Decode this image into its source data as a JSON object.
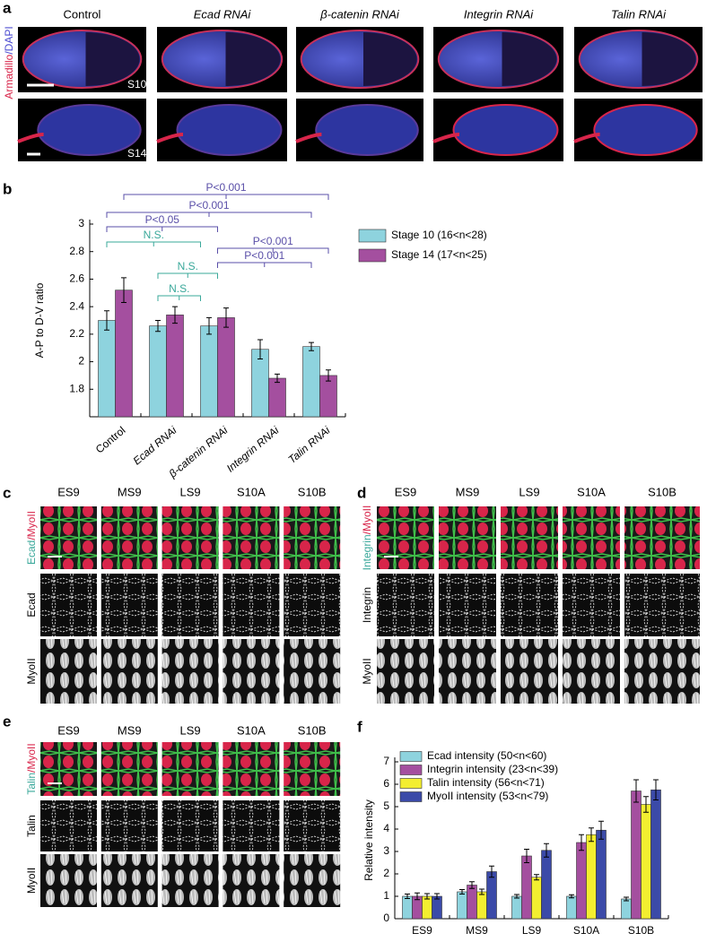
{
  "panel_labels": [
    "a",
    "b",
    "c",
    "d",
    "e",
    "f"
  ],
  "panel_a": {
    "conditions": [
      "Control",
      "Ecad RNAi",
      "β-catenin RNAi",
      "Integrin RNAi",
      "Talin RNAi"
    ],
    "side_label": [
      "Armadillo",
      "/DAPI"
    ],
    "stages": [
      "S10",
      "S14"
    ]
  },
  "panel_c": {
    "columns": [
      "ES9",
      "MS9",
      "LS9",
      "S10A",
      "S10B"
    ],
    "merge_label": [
      "Ecad",
      "/MyoII"
    ],
    "row_labels": [
      "Ecad",
      "MyoII"
    ]
  },
  "panel_d": {
    "columns": [
      "ES9",
      "MS9",
      "LS9",
      "S10A",
      "S10B"
    ],
    "merge_label": [
      "Integrin",
      "/MyoII"
    ],
    "row_labels": [
      "Integrin",
      "MyoII"
    ]
  },
  "panel_e": {
    "columns": [
      "ES9",
      "MS9",
      "LS9",
      "S10A",
      "S10B"
    ],
    "merge_label": [
      "Talin",
      "/MyoII"
    ],
    "row_labels": [
      "Talin",
      "MyoII"
    ]
  },
  "chart_data": [
    {
      "type": "bar",
      "ylabel": "A-P to D-V ratio",
      "categories": [
        "Control",
        "Ecad RNAi",
        "β-catenin RNAi",
        "Integrin RNAi",
        "Talin RNAi"
      ],
      "series": [
        {
          "name": "Stage 10  (16<n<28)",
          "color": "#8ed3de",
          "values": [
            2.3,
            2.26,
            2.26,
            2.09,
            2.11
          ],
          "errors": [
            0.07,
            0.04,
            0.06,
            0.07,
            0.03
          ]
        },
        {
          "name": "Stage 14  (17<n<25)",
          "color": "#a44f9f",
          "values": [
            2.52,
            2.34,
            2.32,
            1.88,
            1.9
          ],
          "errors": [
            0.09,
            0.06,
            0.07,
            0.03,
            0.04
          ]
        }
      ],
      "ylim": [
        1.6,
        3
      ],
      "yticks": [
        1.8,
        2,
        2.2,
        2.4,
        2.6,
        2.8,
        3
      ],
      "annotations": [
        {
          "text": "P<0.001",
          "color": "#5a4fa8"
        },
        {
          "text": "P<0.001",
          "color": "#5a4fa8"
        },
        {
          "text": "P<0.05",
          "color": "#5a4fa8"
        },
        {
          "text": "N.S.",
          "color": "#3aa89a"
        },
        {
          "text": "P<0.001",
          "color": "#5a4fa8"
        },
        {
          "text": "P<0.001",
          "color": "#5a4fa8"
        },
        {
          "text": "N.S.",
          "color": "#3aa89a"
        },
        {
          "text": "N.S.",
          "color": "#3aa89a"
        }
      ]
    },
    {
      "type": "bar",
      "ylabel": "Relative intensity",
      "categories": [
        "ES9",
        "MS9",
        "LS9",
        "S10A",
        "S10B"
      ],
      "series": [
        {
          "name": "Ecad intensity (50<n<60)",
          "color": "#8ed3de",
          "values": [
            1.0,
            1.2,
            1.0,
            1.0,
            0.88
          ],
          "errors": [
            0.1,
            0.1,
            0.08,
            0.07,
            0.08
          ]
        },
        {
          "name": "Integrin intensity (23<n<39)",
          "color": "#a44f9f",
          "values": [
            1.0,
            1.5,
            2.8,
            3.4,
            5.7
          ],
          "errors": [
            0.15,
            0.15,
            0.3,
            0.35,
            0.5
          ]
        },
        {
          "name": "Talin intensity (56<n<71)",
          "color": "#f3ee30",
          "values": [
            1.0,
            1.2,
            1.85,
            3.75,
            5.1
          ],
          "errors": [
            0.12,
            0.12,
            0.12,
            0.3,
            0.35
          ]
        },
        {
          "name": "MyoII intensity (53<n<79)",
          "color": "#3b4aa8",
          "values": [
            1.0,
            2.1,
            3.05,
            3.95,
            5.75
          ],
          "errors": [
            0.12,
            0.25,
            0.3,
            0.4,
            0.45
          ]
        }
      ],
      "ylim": [
        0,
        7
      ],
      "yticks": [
        0,
        1,
        2,
        3,
        4,
        5,
        6,
        7
      ]
    }
  ]
}
